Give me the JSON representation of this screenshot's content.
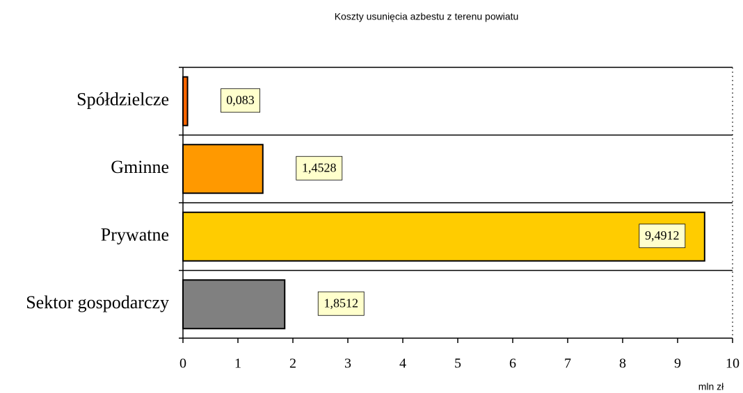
{
  "chart_data": {
    "type": "bar",
    "orientation": "horizontal",
    "title": "Koszty  usunięcia azbestu z terenu powiatu",
    "x_label": "mln zł",
    "categories": [
      "Spółdzielcze",
      "Gminne",
      "Prywatne",
      "Sektor gospodarczy"
    ],
    "values": [
      0.083,
      1.4528,
      9.4912,
      1.8512
    ],
    "value_labels": [
      "0,083",
      "1,4528",
      "9,4912",
      "1,8512"
    ],
    "colors": [
      "#ff6600",
      "#ff9900",
      "#ffcc00",
      "#808080"
    ],
    "xlim": [
      0,
      10
    ],
    "xticks": [
      0,
      1,
      2,
      3,
      4,
      5,
      6,
      7,
      8,
      9,
      10
    ]
  }
}
